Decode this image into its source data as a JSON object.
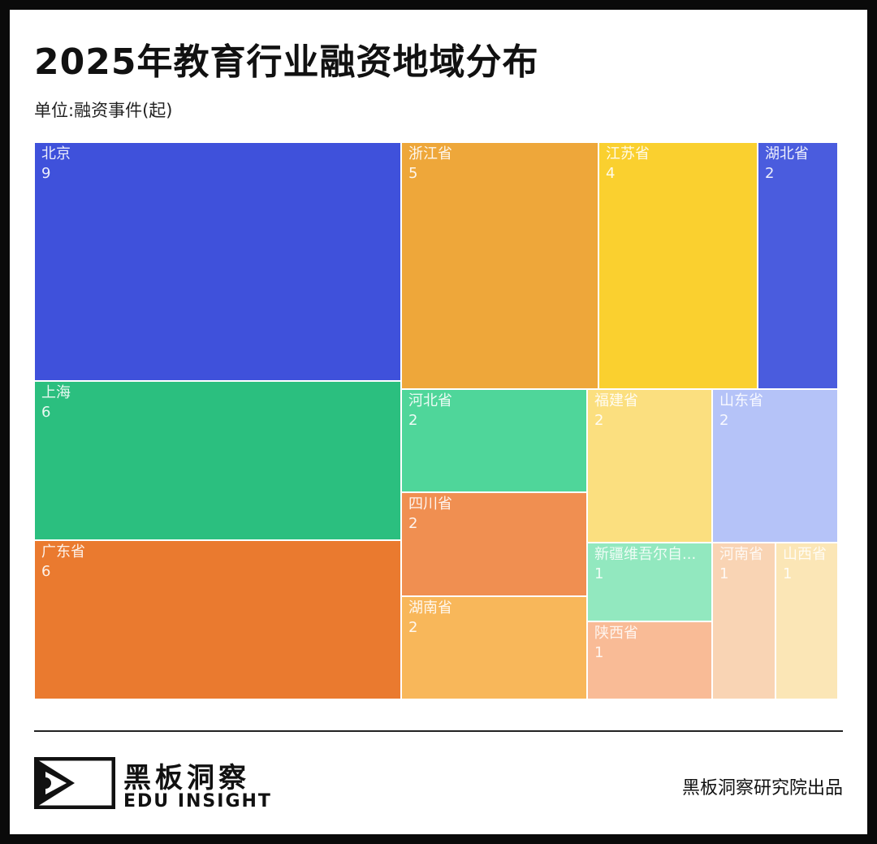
{
  "header": {
    "title": "2025年教育行业融资地域分布",
    "subtitle": "单位:融资事件(起)"
  },
  "chart_data": {
    "type": "treemap",
    "title": "2025年教育行业融资地域分布",
    "unit": "单位:融资事件(起)",
    "items": [
      {
        "name": "北京",
        "value": 9,
        "color": "#3F51DB"
      },
      {
        "name": "上海",
        "value": 6,
        "color": "#2BBF7F"
      },
      {
        "name": "广东省",
        "value": 6,
        "color": "#EA7A2F"
      },
      {
        "name": "浙江省",
        "value": 5,
        "color": "#EEA73A"
      },
      {
        "name": "江苏省",
        "value": 4,
        "color": "#FAD02F"
      },
      {
        "name": "湖北省",
        "value": 2,
        "color": "#4A5CDE"
      },
      {
        "name": "河北省",
        "value": 2,
        "color": "#4FD69A"
      },
      {
        "name": "四川省",
        "value": 2,
        "color": "#F08F51"
      },
      {
        "name": "湖南省",
        "value": 2,
        "color": "#F8B75A"
      },
      {
        "name": "福建省",
        "value": 2,
        "color": "#FBDF7F"
      },
      {
        "name": "山东省",
        "value": 2,
        "color": "#B5C3F8"
      },
      {
        "name": "新疆维吾尔自...",
        "value": 1,
        "color": "#92E8BF"
      },
      {
        "name": "陕西省",
        "value": 1,
        "color": "#F9BB96"
      },
      {
        "name": "河南省",
        "value": 1,
        "color": "#F9D4B4"
      },
      {
        "name": "山西省",
        "value": 1,
        "color": "#FBE6B6"
      }
    ]
  },
  "footer": {
    "brand_cn": "黑板洞察",
    "brand_en": "EDU INSIGHT",
    "credit": "黑板洞察研究院出品"
  }
}
